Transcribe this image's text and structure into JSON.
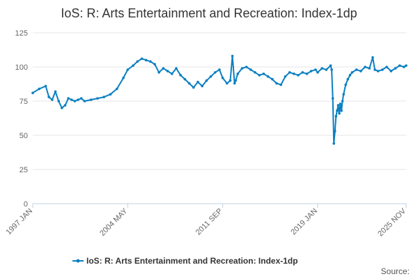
{
  "chart_data": {
    "type": "line",
    "title": "IoS: R: Arts Entertainment and Recreation: Index-1dp",
    "xlabel": "",
    "ylabel": "",
    "ylim": [
      0,
      125
    ],
    "y_ticks": [
      "0",
      "25",
      "50",
      "75",
      "100",
      "125"
    ],
    "x_ticks": [
      "1997 JAN",
      "2004 MAY",
      "2011 SEP",
      "2019 JAN",
      "2025 NOV"
    ],
    "grid": "horizontal",
    "legend_position": "bottom",
    "series": [
      {
        "name": "IoS: R: Arts Entertainment and Recreation: Index-1dp",
        "color": "#0a7fc2",
        "x": [
          "1997-01",
          "1997-07",
          "1998-01",
          "1998-04",
          "1998-07",
          "1998-10",
          "1999-01",
          "1999-04",
          "1999-07",
          "1999-10",
          "2000-01",
          "2000-04",
          "2000-07",
          "2000-10",
          "2001-01",
          "2001-07",
          "2002-01",
          "2002-07",
          "2003-01",
          "2003-07",
          "2004-01",
          "2004-05",
          "2004-10",
          "2005-02",
          "2005-06",
          "2005-10",
          "2006-02",
          "2006-06",
          "2006-10",
          "2007-02",
          "2007-06",
          "2007-10",
          "2008-02",
          "2008-06",
          "2008-10",
          "2009-02",
          "2009-06",
          "2009-10",
          "2010-02",
          "2010-06",
          "2010-10",
          "2011-02",
          "2011-06",
          "2011-09",
          "2012-01",
          "2012-04",
          "2012-06",
          "2012-08",
          "2012-09",
          "2012-11",
          "2013-03",
          "2013-07",
          "2013-11",
          "2014-03",
          "2014-07",
          "2014-11",
          "2015-03",
          "2015-07",
          "2015-11",
          "2016-03",
          "2016-07",
          "2016-11",
          "2017-03",
          "2017-07",
          "2017-11",
          "2018-03",
          "2018-07",
          "2018-11",
          "2019-01",
          "2019-05",
          "2019-09",
          "2020-01",
          "2020-02",
          "2020-03",
          "2020-04",
          "2020-05",
          "2020-06",
          "2020-07",
          "2020-08",
          "2020-09",
          "2020-10",
          "2020-11",
          "2020-12",
          "2021-01",
          "2021-03",
          "2021-05",
          "2021-07",
          "2021-09",
          "2022-01",
          "2022-05",
          "2022-09",
          "2023-01",
          "2023-04",
          "2023-06",
          "2023-09",
          "2024-01",
          "2024-05",
          "2024-09",
          "2025-01",
          "2025-05",
          "2025-09",
          "2025-11"
        ],
        "values": [
          81,
          84,
          86,
          78,
          76,
          82,
          75,
          70,
          72,
          77,
          76,
          75,
          76,
          77,
          75,
          76,
          77,
          78,
          80,
          84,
          92,
          98,
          101,
          104,
          106,
          105,
          104,
          102,
          96,
          99,
          97,
          95,
          99,
          94,
          91,
          88,
          85,
          89,
          86,
          90,
          93,
          96,
          98,
          92,
          88,
          90,
          108,
          88,
          90,
          95,
          99,
          100,
          98,
          96,
          94,
          95,
          93,
          91,
          88,
          87,
          93,
          96,
          95,
          94,
          96,
          95,
          97,
          98,
          96,
          99,
          98,
          101,
          98,
          77,
          44,
          53,
          64,
          68,
          72,
          66,
          73,
          68,
          75,
          80,
          87,
          91,
          94,
          96,
          98,
          97,
          100,
          99,
          107,
          98,
          97,
          98,
          100,
          97,
          99,
          101,
          100,
          101
        ]
      }
    ]
  },
  "legend": {
    "label": "IoS: R: Arts Entertainment and Recreation: Index-1dp"
  },
  "source": {
    "label": "Source:"
  }
}
